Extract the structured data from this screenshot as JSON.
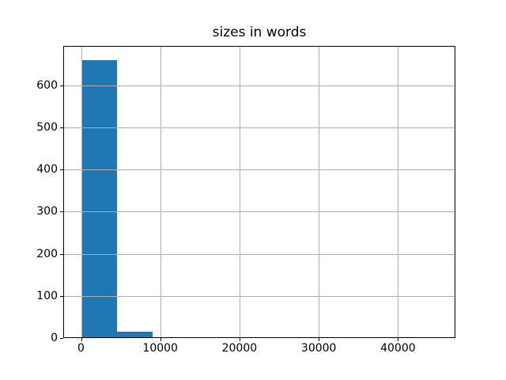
{
  "chart_data": {
    "type": "bar",
    "subtype": "histogram",
    "title": "sizes in words",
    "xlabel": "",
    "ylabel": "",
    "bin_edges": [
      0,
      4500,
      9000,
      13500,
      18000,
      22500,
      27000,
      31500,
      36000,
      40500,
      45000
    ],
    "counts": [
      660,
      15,
      0,
      0,
      0,
      0,
      0,
      0,
      0,
      0
    ],
    "xticks": [
      0,
      10000,
      20000,
      30000,
      40000
    ],
    "yticks": [
      0,
      100,
      200,
      300,
      400,
      500,
      600
    ],
    "xlim": [
      -2250,
      47250
    ],
    "ylim": [
      0,
      693
    ],
    "grid": true,
    "grid_over_bars": true,
    "bar_color": "#1f77b4",
    "grid_color": "#b0b0b0",
    "spine_color": "#000000",
    "text_color": "#000000",
    "background_color": "#ffffff"
  }
}
